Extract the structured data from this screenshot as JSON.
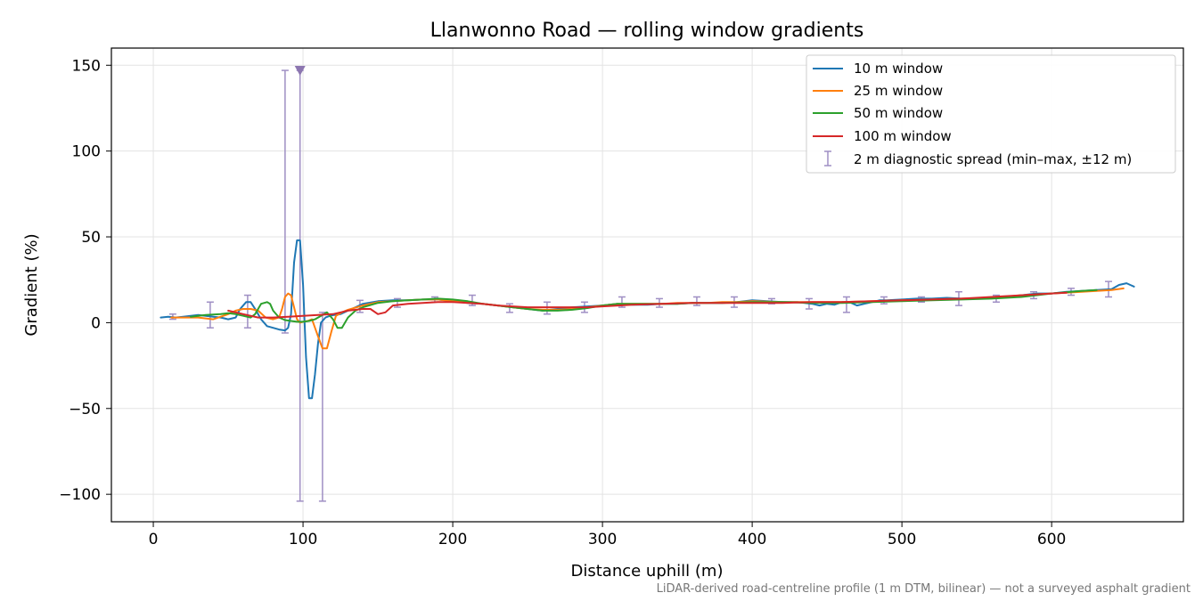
{
  "chart_data": {
    "type": "line",
    "title": "Llanwonno Road — rolling window gradients",
    "xlabel": "Distance uphill (m)",
    "ylabel": "Gradient (%)",
    "xlim": [
      -28,
      688
    ],
    "ylim": [
      -116,
      160
    ],
    "xticks": [
      0,
      100,
      200,
      300,
      400,
      500,
      600
    ],
    "yticks": [
      -100,
      -50,
      0,
      50,
      100,
      150
    ],
    "xtick_labels": [
      "0",
      "100",
      "200",
      "300",
      "400",
      "500",
      "600"
    ],
    "ytick_labels": [
      "−100",
      "−50",
      "0",
      "50",
      "100",
      "150"
    ],
    "grid": true,
    "legend_position": "top-right",
    "footnote": "LiDAR-derived road-centreline profile (1 m DTM, bilinear) — not a surveyed asphalt gradient",
    "series": [
      {
        "name": "10 m window",
        "color": "#1f77b4",
        "x": [
          5,
          10,
          15,
          20,
          25,
          30,
          35,
          40,
          45,
          50,
          55,
          58,
          62,
          65,
          68,
          72,
          76,
          80,
          84,
          88,
          90,
          92,
          94,
          96,
          98,
          100,
          102,
          104,
          106,
          108,
          110,
          112,
          115,
          118,
          121,
          125,
          130,
          135,
          140,
          150,
          160,
          170,
          180,
          190,
          200,
          210,
          220,
          230,
          240,
          250,
          260,
          270,
          280,
          290,
          300,
          310,
          320,
          330,
          340,
          350,
          360,
          370,
          380,
          390,
          400,
          410,
          420,
          430,
          440,
          445,
          450,
          455,
          460,
          465,
          470,
          475,
          480,
          485,
          490,
          500,
          510,
          520,
          530,
          540,
          550,
          560,
          570,
          580,
          590,
          600,
          610,
          620,
          630,
          640,
          645,
          650,
          655
        ],
        "y": [
          3,
          3.5,
          3,
          3.5,
          4,
          4.5,
          4,
          3.5,
          3,
          2,
          3,
          8,
          12,
          12,
          8,
          2,
          -2,
          -3,
          -4,
          -4.5,
          -3,
          5,
          35,
          48,
          48,
          22,
          -20,
          -44,
          -44,
          -30,
          -12,
          0,
          3,
          4,
          4.5,
          5,
          7,
          9,
          11,
          12.5,
          13,
          13,
          13.5,
          13.5,
          12.5,
          11.5,
          11,
          10,
          9,
          8,
          7,
          8,
          9,
          9.5,
          10,
          11,
          10.5,
          10.5,
          11,
          11,
          11.5,
          11.5,
          11.5,
          12,
          13,
          12.5,
          12,
          12,
          11,
          10,
          11,
          10.5,
          12,
          12,
          10,
          11,
          12,
          13,
          13,
          13.5,
          14,
          14,
          14.5,
          14,
          14,
          14.5,
          15,
          16,
          17,
          17,
          18,
          18.5,
          19,
          19.5,
          22,
          23,
          21
        ]
      },
      {
        "name": "25 m window",
        "color": "#ff7f0e",
        "x": [
          12,
          20,
          30,
          40,
          50,
          55,
          60,
          65,
          70,
          75,
          80,
          84,
          86,
          88,
          90,
          92,
          94,
          96,
          98,
          100,
          103,
          106,
          110,
          113,
          116,
          119,
          122,
          126,
          130,
          140,
          150,
          160,
          170,
          180,
          190,
          200,
          210,
          220,
          230,
          240,
          250,
          260,
          270,
          280,
          290,
          300,
          310,
          320,
          330,
          340,
          350,
          360,
          370,
          380,
          390,
          400,
          420,
          440,
          460,
          480,
          500,
          520,
          540,
          560,
          580,
          600,
          620,
          640,
          648
        ],
        "y": [
          3,
          3,
          3,
          2,
          5,
          7,
          8,
          8,
          7,
          3,
          2,
          3,
          8,
          15,
          17,
          16,
          9,
          2,
          0,
          0.5,
          1,
          2,
          -8,
          -15,
          -15,
          -5,
          4,
          6,
          7.5,
          10,
          12,
          12.5,
          13,
          13.5,
          13.5,
          12.5,
          12,
          11,
          10,
          9,
          8,
          7.5,
          7.5,
          8,
          9,
          10,
          11,
          11,
          11,
          11,
          11.5,
          11.5,
          11.5,
          12,
          12,
          12.5,
          12,
          12,
          12,
          12.5,
          13,
          13.5,
          14,
          14.5,
          16,
          17,
          18,
          19,
          20
        ]
      },
      {
        "name": "50 m window",
        "color": "#2ca02c",
        "x": [
          25,
          35,
          45,
          50,
          55,
          60,
          65,
          68,
          72,
          76,
          78,
          80,
          84,
          88,
          92,
          96,
          100,
          104,
          108,
          112,
          116,
          120,
          123,
          126,
          130,
          135,
          140,
          150,
          160,
          170,
          180,
          190,
          200,
          210,
          220,
          230,
          240,
          250,
          260,
          270,
          280,
          290,
          300,
          310,
          320,
          330,
          340,
          350,
          360,
          380,
          400,
          420,
          440,
          460,
          480,
          500,
          520,
          540,
          560,
          580,
          600,
          620,
          630
        ],
        "y": [
          3.5,
          4.5,
          5,
          5.5,
          5,
          4,
          3,
          5,
          11,
          12,
          11,
          7,
          3,
          1.5,
          1,
          0.5,
          0.5,
          1,
          2,
          4,
          6,
          2,
          -3,
          -3,
          3,
          7,
          9,
          11.5,
          12.5,
          13,
          13.5,
          14,
          13.5,
          12.5,
          11,
          10,
          9,
          8,
          7,
          7,
          7.5,
          8.5,
          10,
          11,
          11,
          11,
          11,
          11,
          11.5,
          11.5,
          12,
          12,
          11.5,
          11.5,
          12,
          12.5,
          13,
          13.5,
          14,
          15,
          17,
          18.5,
          19
        ]
      },
      {
        "name": "100 m window",
        "color": "#d62728",
        "x": [
          50,
          60,
          70,
          80,
          90,
          100,
          110,
          120,
          130,
          140,
          145,
          150,
          155,
          160,
          170,
          180,
          190,
          200,
          210,
          220,
          230,
          240,
          250,
          260,
          270,
          280,
          290,
          300,
          320,
          340,
          360,
          380,
          400,
          420,
          440,
          460,
          480,
          500,
          520,
          540,
          560,
          580,
          600,
          610
        ],
        "y": [
          7,
          5,
          3,
          3,
          3.5,
          4,
          4.5,
          5,
          7,
          8,
          8,
          5,
          6,
          10,
          11,
          11.5,
          12,
          12,
          11.5,
          11,
          10,
          9.5,
          9,
          9,
          9,
          9,
          9,
          9.5,
          10.5,
          11,
          11.5,
          11.5,
          11.5,
          11.5,
          12,
          12,
          12.5,
          13,
          13.5,
          14,
          15,
          16,
          17,
          17.5
        ]
      }
    ],
    "diagnostic": {
      "name": "2 m diagnostic spread (min–max, ±12 m)",
      "color": "#9f8fc4",
      "bars": [
        {
          "x": 13,
          "low": 2,
          "high": 5
        },
        {
          "x": 38,
          "low": -3,
          "high": 12
        },
        {
          "x": 63,
          "low": -3,
          "high": 16
        },
        {
          "x": 88,
          "low": -6,
          "high": 147
        },
        {
          "x": 98,
          "low": -104,
          "high": 147
        },
        {
          "x": 113,
          "low": -104,
          "high": 6
        },
        {
          "x": 138,
          "low": 6,
          "high": 13
        },
        {
          "x": 163,
          "low": 9,
          "high": 14
        },
        {
          "x": 188,
          "low": 12,
          "high": 15
        },
        {
          "x": 213,
          "low": 10,
          "high": 16
        },
        {
          "x": 238,
          "low": 6,
          "high": 11
        },
        {
          "x": 263,
          "low": 5,
          "high": 12
        },
        {
          "x": 288,
          "low": 6,
          "high": 12
        },
        {
          "x": 313,
          "low": 9,
          "high": 15
        },
        {
          "x": 338,
          "low": 9,
          "high": 14
        },
        {
          "x": 363,
          "low": 10,
          "high": 15
        },
        {
          "x": 388,
          "low": 9,
          "high": 15
        },
        {
          "x": 413,
          "low": 11,
          "high": 14
        },
        {
          "x": 438,
          "low": 8,
          "high": 14
        },
        {
          "x": 463,
          "low": 6,
          "high": 15
        },
        {
          "x": 488,
          "low": 11,
          "high": 15
        },
        {
          "x": 513,
          "low": 12,
          "high": 15
        },
        {
          "x": 538,
          "low": 10,
          "high": 18
        },
        {
          "x": 563,
          "low": 12,
          "high": 16
        },
        {
          "x": 588,
          "low": 14,
          "high": 18
        },
        {
          "x": 613,
          "low": 16,
          "high": 20
        },
        {
          "x": 638,
          "low": 15,
          "high": 24
        }
      ],
      "marker": {
        "x": 98,
        "y": 147
      }
    }
  }
}
